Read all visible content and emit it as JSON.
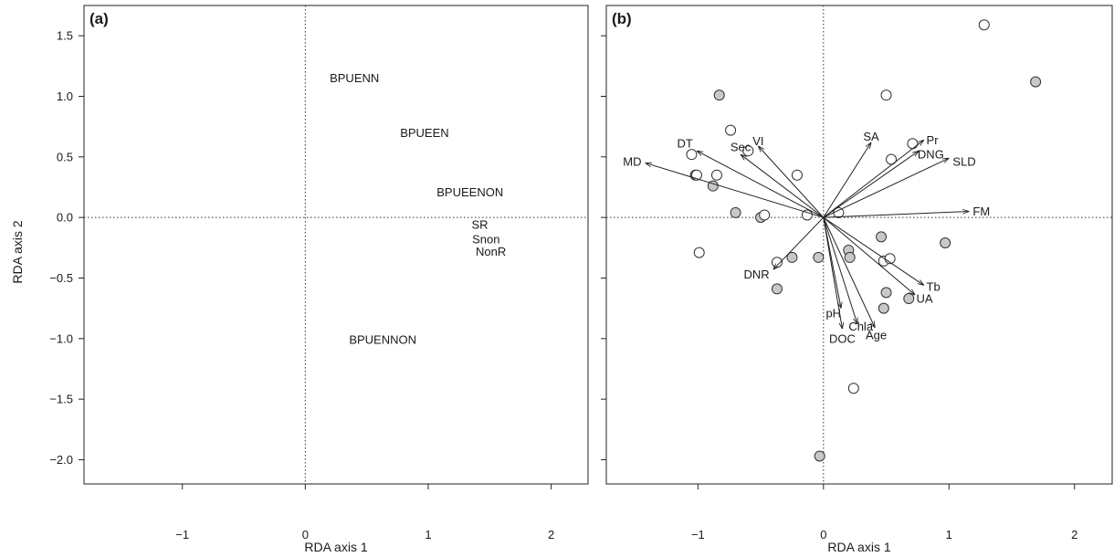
{
  "y_axis_title": "RDA axis 2",
  "colors": {
    "site_filled": "#c8c8c8",
    "site_open": "#ffffff",
    "ink": "#1a1a1a"
  },
  "chart_data": [
    {
      "type": "scatter",
      "panel_label": "(a)",
      "xlabel": "RDA axis 1",
      "ylabel": "RDA axis 2",
      "xlim": [
        -1.8,
        2.3
      ],
      "ylim": [
        -2.2,
        1.75
      ],
      "x_ticks": [
        -1,
        0,
        1,
        2
      ],
      "y_ticks": [
        -2.0,
        -1.5,
        -1.0,
        -0.5,
        0.0,
        0.5,
        1.0,
        1.5
      ],
      "x_tick_labels": [
        "−1",
        "0",
        "1",
        "2"
      ],
      "y_tick_labels": [
        "−2.0",
        "−1.5",
        "−1.0",
        "−0.5",
        "0.0",
        "0.5",
        "1.0",
        "1.5"
      ],
      "zero_lines": true,
      "labels": [
        {
          "text": "BPUENN",
          "x": 0.4,
          "y": 1.15
        },
        {
          "text": "BPUEEN",
          "x": 0.97,
          "y": 0.7
        },
        {
          "text": "BPUEENON",
          "x": 1.34,
          "y": 0.21
        },
        {
          "text": "SR",
          "x": 1.42,
          "y": -0.06
        },
        {
          "text": "Snon",
          "x": 1.47,
          "y": -0.18
        },
        {
          "text": "NonR",
          "x": 1.51,
          "y": -0.28
        },
        {
          "text": "BPUENNON",
          "x": 0.63,
          "y": -1.01
        }
      ]
    },
    {
      "type": "scatter",
      "panel_label": "(b)",
      "xlabel": "RDA axis 1",
      "ylabel": "",
      "xlim": [
        -1.73,
        2.3
      ],
      "ylim": [
        -2.2,
        1.75
      ],
      "x_ticks": [
        -1,
        0,
        1,
        2
      ],
      "y_ticks": [
        -2.0,
        -1.5,
        -1.0,
        -0.5,
        0.0,
        0.5,
        1.0,
        1.5
      ],
      "x_tick_labels": [
        "−1",
        "0",
        "1",
        "2"
      ],
      "zero_lines": true,
      "vectors": [
        {
          "label": "MD",
          "x": -1.42,
          "y": 0.45,
          "lx": -1.45,
          "ly": 0.46,
          "anchor": "end"
        },
        {
          "label": "DT",
          "x": -1.01,
          "y": 0.55,
          "lx": -1.04,
          "ly": 0.61,
          "anchor": "end"
        },
        {
          "label": "Sec",
          "x": -0.66,
          "y": 0.52,
          "lx": -0.66,
          "ly": 0.58,
          "anchor": "middle"
        },
        {
          "label": "VI",
          "x": -0.52,
          "y": 0.59,
          "lx": -0.52,
          "ly": 0.63,
          "anchor": "middle"
        },
        {
          "label": "SA",
          "x": 0.38,
          "y": 0.62,
          "lx": 0.38,
          "ly": 0.67,
          "anchor": "middle"
        },
        {
          "label": "Pr",
          "x": 0.8,
          "y": 0.64,
          "lx": 0.82,
          "ly": 0.64,
          "anchor": "start"
        },
        {
          "label": "DNG",
          "x": 0.76,
          "y": 0.55,
          "lx": 0.75,
          "ly": 0.52,
          "anchor": "start"
        },
        {
          "label": "SLD",
          "x": 1.0,
          "y": 0.49,
          "lx": 1.03,
          "ly": 0.46,
          "anchor": "start"
        },
        {
          "label": "FM",
          "x": 1.16,
          "y": 0.05,
          "lx": 1.19,
          "ly": 0.05,
          "anchor": "start"
        },
        {
          "label": "DNR",
          "x": -0.4,
          "y": -0.43,
          "lx": -0.43,
          "ly": -0.47,
          "anchor": "end"
        },
        {
          "label": "pH",
          "x": 0.14,
          "y": -0.75,
          "lx": 0.14,
          "ly": -0.79,
          "anchor": "end"
        },
        {
          "label": "DOC",
          "x": 0.15,
          "y": -0.92,
          "lx": 0.15,
          "ly": -1.0,
          "anchor": "middle"
        },
        {
          "label": "Chla",
          "x": 0.27,
          "y": -0.88,
          "lx": 0.2,
          "ly": -0.9,
          "anchor": "start"
        },
        {
          "label": "Age",
          "x": 0.41,
          "y": -0.91,
          "lx": 0.42,
          "ly": -0.97,
          "anchor": "middle"
        },
        {
          "label": "UA",
          "x": 0.73,
          "y": -0.64,
          "lx": 0.74,
          "ly": -0.67,
          "anchor": "start"
        },
        {
          "label": "Tb",
          "x": 0.8,
          "y": -0.56,
          "lx": 0.82,
          "ly": -0.57,
          "anchor": "start"
        }
      ],
      "sites_open": [
        [
          1.28,
          1.59
        ],
        [
          0.5,
          1.01
        ],
        [
          -0.74,
          0.72
        ],
        [
          0.71,
          0.61
        ],
        [
          -1.05,
          0.52
        ],
        [
          -0.6,
          0.55
        ],
        [
          0.54,
          0.48
        ],
        [
          -1.01,
          0.35
        ],
        [
          -0.85,
          0.35
        ],
        [
          -0.21,
          0.35
        ],
        [
          -0.47,
          0.02
        ],
        [
          -0.13,
          0.02
        ],
        [
          0.12,
          0.04
        ],
        [
          -0.99,
          -0.29
        ],
        [
          -0.37,
          -0.37
        ],
        [
          0.48,
          -0.36
        ],
        [
          0.53,
          -0.34
        ],
        [
          0.24,
          -1.41
        ]
      ],
      "sites_filled": [
        [
          1.69,
          1.12
        ],
        [
          -0.83,
          1.01
        ],
        [
          -1.02,
          0.35
        ],
        [
          -0.88,
          0.26
        ],
        [
          -0.7,
          0.04
        ],
        [
          -0.5,
          0.0
        ],
        [
          0.2,
          -0.27
        ],
        [
          0.21,
          -0.33
        ],
        [
          0.46,
          -0.16
        ],
        [
          0.97,
          -0.21
        ],
        [
          -0.25,
          -0.33
        ],
        [
          -0.04,
          -0.33
        ],
        [
          -0.37,
          -0.59
        ],
        [
          0.5,
          -0.62
        ],
        [
          0.68,
          -0.67
        ],
        [
          0.48,
          -0.75
        ],
        [
          -0.03,
          -1.97
        ]
      ]
    }
  ]
}
